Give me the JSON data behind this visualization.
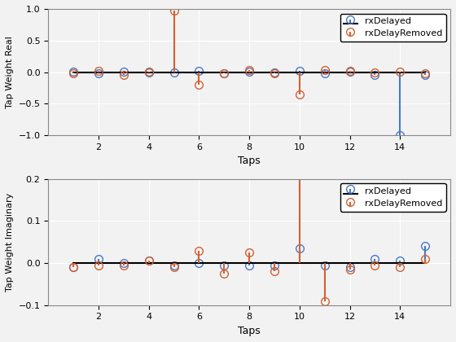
{
  "taps": [
    1,
    2,
    3,
    4,
    5,
    6,
    7,
    8,
    9,
    10,
    11,
    12,
    13,
    14,
    15
  ],
  "real_rxDelayed": [
    0.01,
    -0.02,
    0.01,
    -0.01,
    0.0,
    0.02,
    -0.02,
    0.01,
    -0.01,
    0.02,
    -0.02,
    0.01,
    -0.04,
    -1.0,
    -0.04
  ],
  "real_rxDelayRemoved": [
    -0.02,
    0.02,
    -0.05,
    0.01,
    0.97,
    -0.2,
    -0.02,
    0.03,
    -0.02,
    -0.35,
    0.03,
    0.02,
    -0.01,
    0.01,
    -0.02
  ],
  "imag_rxDelayed": [
    -0.01,
    0.01,
    0.0,
    0.005,
    -0.005,
    0.0,
    -0.005,
    -0.005,
    -0.005,
    0.035,
    -0.005,
    -0.01,
    0.01,
    0.005,
    0.04
  ],
  "imag_rxDelayRemoved": [
    -0.01,
    -0.005,
    -0.005,
    0.005,
    -0.01,
    0.03,
    -0.025,
    0.025,
    -0.02,
    0.21,
    -0.09,
    -0.015,
    -0.005,
    -0.01,
    0.01
  ],
  "color_delayed": "#4878c8",
  "color_removed": "#d46030",
  "xlabel": "Taps",
  "ylabel_real": "Tap Weight Real",
  "ylabel_imag": "Tap Weight Imaginary",
  "ylim_real": [
    -1.0,
    1.0
  ],
  "ylim_imag": [
    -0.1,
    0.2
  ],
  "label_delayed": "rxDelayed",
  "label_removed": "rxDelayRemoved",
  "bg_color": "#f2f2f2",
  "grid_color": "#ffffff"
}
